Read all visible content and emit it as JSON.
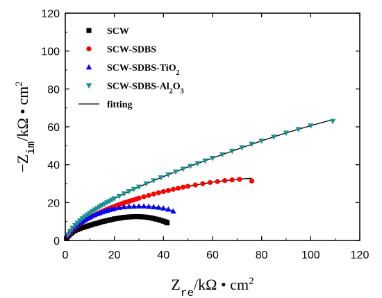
{
  "chart_data": {
    "type": "scatter",
    "xlabel": {
      "main": "Z",
      "sub": "re",
      "unit": "/kΩ • cm",
      "sup": "2"
    },
    "ylabel": {
      "prefix": "−Z",
      "sub": "im",
      "unit": "/kΩ • cm",
      "sup": "2"
    },
    "xlim": [
      0,
      120
    ],
    "ylim": [
      0,
      120
    ],
    "x_ticks": [
      0,
      20,
      40,
      60,
      80,
      100,
      120
    ],
    "y_ticks": [
      0,
      20,
      40,
      60,
      80,
      100,
      120
    ],
    "grid": false,
    "legend_position": "top-left",
    "series": [
      {
        "name": "SCW",
        "label_parts": [
          {
            "t": "SCW"
          }
        ],
        "marker": "square",
        "color": "#000000",
        "points": [
          [
            0.5,
            1.0
          ],
          [
            1.0,
            2.0
          ],
          [
            1.5,
            2.8
          ],
          [
            2.0,
            3.5
          ],
          [
            2.5,
            4.0
          ],
          [
            3.0,
            4.5
          ],
          [
            4.0,
            5.2
          ],
          [
            5.0,
            5.8
          ],
          [
            6.0,
            6.3
          ],
          [
            7.0,
            6.8
          ],
          [
            8.0,
            7.2
          ],
          [
            9.0,
            7.6
          ],
          [
            10.0,
            8.0
          ],
          [
            11.0,
            8.4
          ],
          [
            12.0,
            8.8
          ],
          [
            13.0,
            9.1
          ],
          [
            14.0,
            9.5
          ],
          [
            15.0,
            9.9
          ],
          [
            16.0,
            10.2
          ],
          [
            17.0,
            10.5
          ],
          [
            18.0,
            10.8
          ],
          [
            19.0,
            11.1
          ],
          [
            20.0,
            11.4
          ],
          [
            21.0,
            11.6
          ],
          [
            22.0,
            11.8
          ],
          [
            23.0,
            12.0
          ],
          [
            24.0,
            12.2
          ],
          [
            25.0,
            12.3
          ],
          [
            26.0,
            12.4
          ],
          [
            27.0,
            12.5
          ],
          [
            28.0,
            12.6
          ],
          [
            29.0,
            12.6
          ],
          [
            30.0,
            12.6
          ],
          [
            31.0,
            12.5
          ],
          [
            32.0,
            12.4
          ],
          [
            33.0,
            12.3
          ],
          [
            34.0,
            12.1
          ],
          [
            35.0,
            11.9
          ],
          [
            36.0,
            11.6
          ],
          [
            37.0,
            11.3
          ],
          [
            38.0,
            11.0
          ],
          [
            39.0,
            10.6
          ],
          [
            40.0,
            10.2
          ],
          [
            41.0,
            9.8
          ],
          [
            41.5,
            9.3
          ]
        ],
        "fit": [
          [
            0.5,
            1.0
          ],
          [
            2,
            3.4
          ],
          [
            5,
            5.8
          ],
          [
            10,
            8.0
          ],
          [
            15,
            9.9
          ],
          [
            20,
            11.4
          ],
          [
            25,
            12.3
          ],
          [
            30,
            12.6
          ],
          [
            35,
            12.0
          ],
          [
            40,
            10.3
          ],
          [
            42,
            9.4
          ]
        ]
      },
      {
        "name": "SCW-SDBS",
        "label_parts": [
          {
            "t": "SCW-SDBS"
          }
        ],
        "marker": "circle",
        "color": "#ff0000",
        "points": [
          [
            1.0,
            2.5
          ],
          [
            2.0,
            4.2
          ],
          [
            3.0,
            5.6
          ],
          [
            4.0,
            6.8
          ],
          [
            5.0,
            7.9
          ],
          [
            6.0,
            8.9
          ],
          [
            7.0,
            9.8
          ],
          [
            8.0,
            10.6
          ],
          [
            9.0,
            11.4
          ],
          [
            10.0,
            12.1
          ],
          [
            11.0,
            12.8
          ],
          [
            12.0,
            13.5
          ],
          [
            13.0,
            14.1
          ],
          [
            14.0,
            14.7
          ],
          [
            15.0,
            15.3
          ],
          [
            16.0,
            15.9
          ],
          [
            17.0,
            16.5
          ],
          [
            18.0,
            17.0
          ],
          [
            19.0,
            17.5
          ],
          [
            20.0,
            18.0
          ],
          [
            21.0,
            18.5
          ],
          [
            22.0,
            19.0
          ],
          [
            23.0,
            19.4
          ],
          [
            24.0,
            19.9
          ],
          [
            25.0,
            20.3
          ],
          [
            26.0,
            20.7
          ],
          [
            27.0,
            21.1
          ],
          [
            28.0,
            21.5
          ],
          [
            29.0,
            21.9
          ],
          [
            30.0,
            22.3
          ],
          [
            32.0,
            23.1
          ],
          [
            34.0,
            23.8
          ],
          [
            36.0,
            24.5
          ],
          [
            38.0,
            25.2
          ],
          [
            40.0,
            25.8
          ],
          [
            42.0,
            26.4
          ],
          [
            44.0,
            27.0
          ],
          [
            46.0,
            27.6
          ],
          [
            48.0,
            28.1
          ],
          [
            50.0,
            28.6
          ],
          [
            53.0,
            29.3
          ],
          [
            56.0,
            30.0
          ],
          [
            59.0,
            30.6
          ],
          [
            62.0,
            31.1
          ],
          [
            65.0,
            31.6
          ],
          [
            68.0,
            32.0
          ],
          [
            71.0,
            32.3
          ],
          [
            76.0,
            31.4
          ]
        ],
        "fit": [
          [
            0.5,
            1.3
          ],
          [
            2,
            4.2
          ],
          [
            5,
            7.9
          ],
          [
            10,
            12.1
          ],
          [
            15,
            15.3
          ],
          [
            20,
            18.0
          ],
          [
            25,
            20.3
          ],
          [
            30,
            22.3
          ],
          [
            40,
            25.8
          ],
          [
            50,
            28.6
          ],
          [
            60,
            30.8
          ],
          [
            70,
            32.3
          ],
          [
            76,
            32.8
          ]
        ]
      },
      {
        "name": "SCW-SDBS-TiO2",
        "label_parts": [
          {
            "t": "SCW-SDBS-TiO"
          },
          {
            "t": "2",
            "sub": true
          }
        ],
        "marker": "triangle-up",
        "color": "#0000ff",
        "points": [
          [
            1.0,
            2.8
          ],
          [
            2.0,
            4.6
          ],
          [
            3.0,
            6.0
          ],
          [
            4.0,
            7.2
          ],
          [
            5.0,
            8.3
          ],
          [
            6.0,
            9.2
          ],
          [
            7.0,
            10.1
          ],
          [
            8.0,
            10.9
          ],
          [
            9.0,
            11.6
          ],
          [
            10.0,
            12.3
          ],
          [
            11.0,
            12.9
          ],
          [
            12.0,
            13.5
          ],
          [
            13.0,
            14.0
          ],
          [
            14.0,
            14.5
          ],
          [
            15.0,
            15.0
          ],
          [
            16.0,
            15.4
          ],
          [
            17.0,
            15.8
          ],
          [
            18.0,
            16.2
          ],
          [
            19.0,
            16.5
          ],
          [
            20.0,
            16.8
          ],
          [
            22.0,
            17.3
          ],
          [
            24.0,
            17.7
          ],
          [
            26.0,
            17.9
          ],
          [
            28.0,
            18.0
          ],
          [
            30.0,
            18.1
          ],
          [
            32.0,
            18.1
          ],
          [
            34.0,
            17.9
          ],
          [
            36.0,
            17.7
          ],
          [
            38.0,
            17.4
          ],
          [
            40.0,
            17.0
          ],
          [
            42.0,
            16.4
          ],
          [
            44.0,
            15.4
          ]
        ],
        "fit": [
          [
            0.5,
            1.5
          ],
          [
            2,
            4.6
          ],
          [
            5,
            8.3
          ],
          [
            10,
            12.3
          ],
          [
            15,
            15.0
          ],
          [
            20,
            16.8
          ],
          [
            25,
            17.8
          ],
          [
            30,
            18.1
          ],
          [
            35,
            17.8
          ],
          [
            40,
            17.0
          ],
          [
            44,
            15.6
          ]
        ]
      },
      {
        "name": "SCW-SDBS-Al2O3",
        "label_parts": [
          {
            "t": "SCW-SDBS-Al"
          },
          {
            "t": "2",
            "sub": true
          },
          {
            "t": "O"
          },
          {
            "t": "3",
            "sub": true
          }
        ],
        "marker": "triangle-down",
        "color": "#1a9090",
        "points": [
          [
            1.0,
            3.0
          ],
          [
            2.0,
            5.0
          ],
          [
            3.0,
            6.6
          ],
          [
            4.0,
            8.0
          ],
          [
            5.0,
            9.3
          ],
          [
            6.0,
            10.5
          ],
          [
            7.0,
            11.6
          ],
          [
            8.0,
            12.6
          ],
          [
            9.0,
            13.6
          ],
          [
            10.0,
            14.5
          ],
          [
            11.0,
            15.4
          ],
          [
            12.0,
            16.2
          ],
          [
            13.0,
            17.0
          ],
          [
            14.0,
            17.8
          ],
          [
            15.0,
            18.6
          ],
          [
            16.0,
            19.3
          ],
          [
            17.0,
            20.0
          ],
          [
            18.0,
            20.7
          ],
          [
            19.0,
            21.4
          ],
          [
            20.0,
            22.1
          ],
          [
            22.0,
            23.4
          ],
          [
            24.0,
            24.7
          ],
          [
            26.0,
            25.9
          ],
          [
            28.0,
            27.1
          ],
          [
            30.0,
            28.3
          ],
          [
            33.0,
            30.0
          ],
          [
            36.0,
            31.6
          ],
          [
            39.0,
            33.2
          ],
          [
            42.0,
            34.8
          ],
          [
            45.0,
            36.3
          ],
          [
            48.0,
            37.8
          ],
          [
            51.0,
            39.3
          ],
          [
            54.0,
            40.7
          ],
          [
            57.0,
            42.1
          ],
          [
            60.0,
            43.5
          ],
          [
            64.0,
            45.4
          ],
          [
            68.0,
            47.2
          ],
          [
            72.0,
            49.1
          ],
          [
            76.0,
            50.9
          ],
          [
            80.0,
            52.6
          ],
          [
            85.0,
            54.7
          ],
          [
            90.0,
            56.8
          ],
          [
            95.0,
            58.7
          ],
          [
            100.0,
            60.6
          ],
          [
            109.0,
            63.0
          ]
        ],
        "fit": [
          [
            0.5,
            1.6
          ],
          [
            2,
            5.0
          ],
          [
            5,
            9.3
          ],
          [
            10,
            14.5
          ],
          [
            15,
            18.6
          ],
          [
            20,
            22.1
          ],
          [
            30,
            28.3
          ],
          [
            40,
            33.7
          ],
          [
            50,
            38.8
          ],
          [
            60,
            43.5
          ],
          [
            70,
            48.1
          ],
          [
            80,
            52.6
          ],
          [
            90,
            56.8
          ],
          [
            100,
            60.6
          ],
          [
            109,
            63.8
          ]
        ]
      }
    ],
    "fitting_legend": {
      "label": "fitting",
      "color": "#000000"
    }
  }
}
